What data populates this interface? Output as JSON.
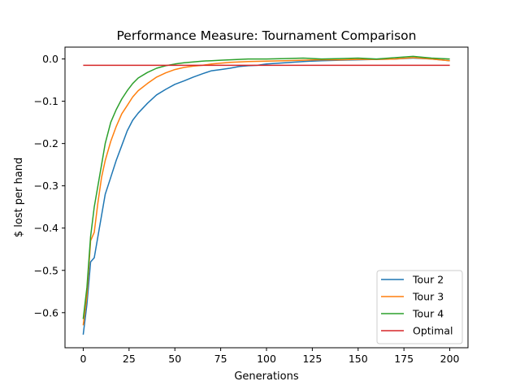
{
  "chart_data": {
    "type": "line",
    "title": "Performance Measure: Tournament Comparison",
    "xlabel": "Generations",
    "ylabel": "$ lost per hand",
    "xlim": [
      -9.95,
      209.95
    ],
    "ylim": [
      -0.683,
      0.028
    ],
    "xticks": [
      0,
      25,
      50,
      75,
      100,
      125,
      150,
      175,
      200
    ],
    "yticks": [
      0.0,
      -0.1,
      -0.2,
      -0.3,
      -0.4,
      -0.5,
      -0.6
    ],
    "ytick_labels": [
      "0.0",
      "−0.1",
      "−0.2",
      "−0.3",
      "−0.4",
      "−0.5",
      "−0.6"
    ],
    "grid": false,
    "legend_position": "lower right",
    "series": [
      {
        "name": "Tour 2",
        "color": "#1f77b4",
        "x": [
          0,
          2,
          4,
          6,
          8,
          10,
          12,
          15,
          18,
          21,
          24,
          27,
          30,
          35,
          40,
          45,
          50,
          55,
          60,
          65,
          70,
          75,
          80,
          85,
          90,
          95,
          100,
          110,
          120,
          130,
          140,
          150,
          160,
          170,
          180,
          190,
          200
        ],
        "y": [
          -0.652,
          -0.58,
          -0.48,
          -0.47,
          -0.42,
          -0.37,
          -0.32,
          -0.28,
          -0.24,
          -0.205,
          -0.17,
          -0.145,
          -0.128,
          -0.105,
          -0.085,
          -0.072,
          -0.06,
          -0.052,
          -0.043,
          -0.035,
          -0.028,
          -0.025,
          -0.022,
          -0.018,
          -0.016,
          -0.015,
          -0.012,
          -0.009,
          -0.006,
          -0.004,
          -0.003,
          -0.002,
          -0.001,
          0.0,
          0.002,
          0.0,
          -0.004
        ]
      },
      {
        "name": "Tour 3",
        "color": "#ff7f0e",
        "x": [
          0,
          2,
          4,
          6,
          8,
          10,
          12,
          15,
          18,
          21,
          24,
          27,
          30,
          35,
          40,
          45,
          50,
          55,
          60,
          65,
          70,
          75,
          80,
          90,
          100,
          110,
          120,
          130,
          140,
          150,
          160,
          170,
          180,
          190,
          200
        ],
        "y": [
          -0.63,
          -0.56,
          -0.43,
          -0.41,
          -0.34,
          -0.28,
          -0.24,
          -0.195,
          -0.16,
          -0.13,
          -0.11,
          -0.09,
          -0.075,
          -0.058,
          -0.043,
          -0.033,
          -0.025,
          -0.02,
          -0.017,
          -0.015,
          -0.012,
          -0.01,
          -0.008,
          -0.006,
          -0.005,
          -0.004,
          -0.003,
          -0.002,
          -0.002,
          -0.001,
          -0.001,
          0.0,
          0.003,
          0.0,
          -0.004
        ]
      },
      {
        "name": "Tour 4",
        "color": "#2ca02c",
        "x": [
          0,
          2,
          4,
          6,
          8,
          10,
          12,
          15,
          18,
          21,
          24,
          27,
          30,
          35,
          40,
          45,
          50,
          55,
          60,
          65,
          70,
          75,
          80,
          90,
          100,
          110,
          120,
          130,
          140,
          150,
          160,
          170,
          180,
          190,
          200
        ],
        "y": [
          -0.615,
          -0.54,
          -0.42,
          -0.35,
          -0.3,
          -0.25,
          -0.2,
          -0.15,
          -0.12,
          -0.095,
          -0.075,
          -0.058,
          -0.045,
          -0.032,
          -0.022,
          -0.016,
          -0.012,
          -0.009,
          -0.007,
          -0.005,
          -0.004,
          -0.003,
          -0.002,
          0.0,
          0.0,
          0.001,
          0.002,
          0.0,
          0.001,
          0.002,
          0.0,
          0.003,
          0.006,
          0.002,
          0.0
        ]
      },
      {
        "name": "Optimal",
        "color": "#d62728",
        "x": [
          0,
          200
        ],
        "y": [
          -0.015,
          -0.015
        ]
      }
    ]
  }
}
